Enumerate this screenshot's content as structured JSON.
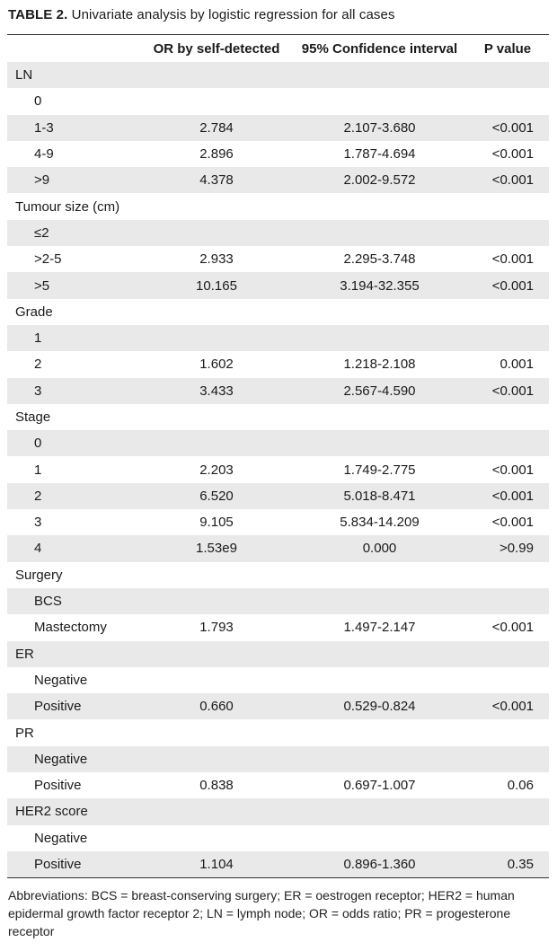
{
  "caption": {
    "label": "TABLE 2.",
    "title": "Univariate analysis by logistic regression for all cases"
  },
  "table": {
    "columns": [
      "",
      "OR by self-detected",
      "95% Confidence interval",
      "P value"
    ],
    "rows": [
      {
        "type": "group",
        "label": "LN"
      },
      {
        "type": "item",
        "label": "0",
        "or": "",
        "ci": "",
        "p": ""
      },
      {
        "type": "item",
        "label": "1-3",
        "or": "2.784",
        "ci": "2.107-3.680",
        "p": "<0.001"
      },
      {
        "type": "item",
        "label": "4-9",
        "or": "2.896",
        "ci": "1.787-4.694",
        "p": "<0.001"
      },
      {
        "type": "item",
        "label": ">9",
        "or": "4.378",
        "ci": "2.002-9.572",
        "p": "<0.001"
      },
      {
        "type": "group",
        "label": "Tumour size (cm)"
      },
      {
        "type": "item",
        "label": "≤2",
        "or": "",
        "ci": "",
        "p": ""
      },
      {
        "type": "item",
        "label": ">2-5",
        "or": "2.933",
        "ci": "2.295-3.748",
        "p": "<0.001"
      },
      {
        "type": "item",
        "label": ">5",
        "or": "10.165",
        "ci": "3.194-32.355",
        "p": "<0.001"
      },
      {
        "type": "group",
        "label": "Grade"
      },
      {
        "type": "item",
        "label": "1",
        "or": "",
        "ci": "",
        "p": ""
      },
      {
        "type": "item",
        "label": "2",
        "or": "1.602",
        "ci": "1.218-2.108",
        "p": "0.001"
      },
      {
        "type": "item",
        "label": "3",
        "or": "3.433",
        "ci": "2.567-4.590",
        "p": "<0.001"
      },
      {
        "type": "group",
        "label": "Stage"
      },
      {
        "type": "item",
        "label": "0",
        "or": "",
        "ci": "",
        "p": ""
      },
      {
        "type": "item",
        "label": "1",
        "or": "2.203",
        "ci": "1.749-2.775",
        "p": "<0.001"
      },
      {
        "type": "item",
        "label": "2",
        "or": "6.520",
        "ci": "5.018-8.471",
        "p": "<0.001"
      },
      {
        "type": "item",
        "label": "3",
        "or": "9.105",
        "ci": "5.834-14.209",
        "p": "<0.001"
      },
      {
        "type": "item",
        "label": "4",
        "or": "1.53e9",
        "ci": "0.000",
        "p": ">0.99"
      },
      {
        "type": "group",
        "label": "Surgery"
      },
      {
        "type": "item",
        "label": "BCS",
        "or": "",
        "ci": "",
        "p": ""
      },
      {
        "type": "item",
        "label": "Mastectomy",
        "or": "1.793",
        "ci": "1.497-2.147",
        "p": "<0.001"
      },
      {
        "type": "group",
        "label": "ER"
      },
      {
        "type": "item",
        "label": "Negative",
        "or": "",
        "ci": "",
        "p": ""
      },
      {
        "type": "item",
        "label": "Positive",
        "or": "0.660",
        "ci": "0.529-0.824",
        "p": "<0.001"
      },
      {
        "type": "group",
        "label": "PR"
      },
      {
        "type": "item",
        "label": "Negative",
        "or": "",
        "ci": "",
        "p": ""
      },
      {
        "type": "item",
        "label": "Positive",
        "or": "0.838",
        "ci": "0.697-1.007",
        "p": "0.06"
      },
      {
        "type": "group",
        "label": "HER2 score"
      },
      {
        "type": "item",
        "label": "Negative",
        "or": "",
        "ci": "",
        "p": ""
      },
      {
        "type": "item",
        "label": "Positive",
        "or": "1.104",
        "ci": "0.896-1.360",
        "p": "0.35"
      }
    ]
  },
  "footnote": "Abbreviations: BCS = breast-conserving surgery; ER = oestrogen receptor; HER2 = human epidermal growth factor receptor 2; LN = lymph node; OR = odds ratio; PR = progesterone receptor"
}
